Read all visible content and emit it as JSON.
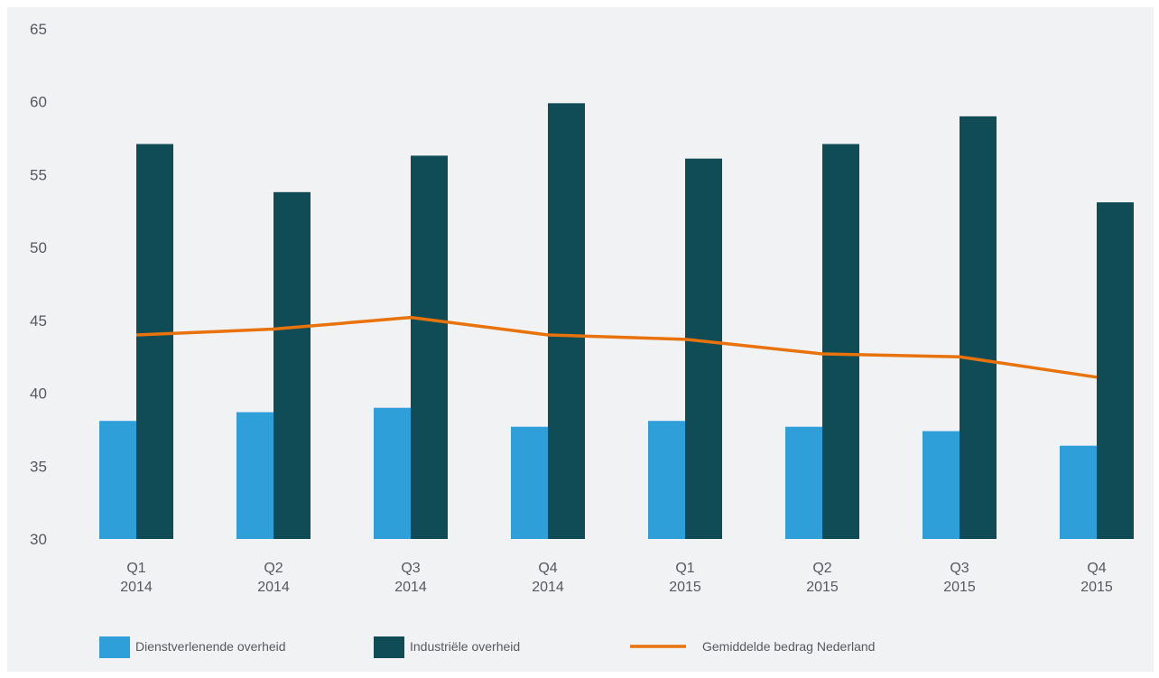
{
  "chart_data": {
    "type": "bar",
    "title": "",
    "xlabel": "",
    "ylabel": "",
    "ylim": [
      30,
      65
    ],
    "yticks": [
      30,
      35,
      40,
      45,
      50,
      55,
      60,
      65
    ],
    "grid": false,
    "legend_position": "bottom",
    "categories": [
      {
        "quarter": "Q1",
        "year": "2014"
      },
      {
        "quarter": "Q2",
        "year": "2014"
      },
      {
        "quarter": "Q3",
        "year": "2014"
      },
      {
        "quarter": "Q4",
        "year": "2014"
      },
      {
        "quarter": "Q1",
        "year": "2015"
      },
      {
        "quarter": "Q2",
        "year": "2015"
      },
      {
        "quarter": "Q3",
        "year": "2015"
      },
      {
        "quarter": "Q4",
        "year": "2015"
      }
    ],
    "series": [
      {
        "name": "Dienstverlenende overheid",
        "type": "bar",
        "color": "#2e9fd8",
        "values": [
          38.1,
          38.7,
          39.0,
          37.7,
          38.1,
          37.7,
          37.4,
          36.4
        ]
      },
      {
        "name": "Industriële overheid",
        "type": "bar",
        "color": "#0f4c55",
        "values": [
          57.1,
          53.8,
          56.3,
          59.9,
          56.1,
          57.1,
          59.0,
          53.1
        ]
      },
      {
        "name": "Gemiddelde bedrag Nederland",
        "type": "line",
        "color": "#e8720c",
        "values": [
          44.0,
          44.4,
          45.2,
          44.0,
          43.7,
          42.7,
          42.5,
          41.1
        ]
      }
    ]
  }
}
